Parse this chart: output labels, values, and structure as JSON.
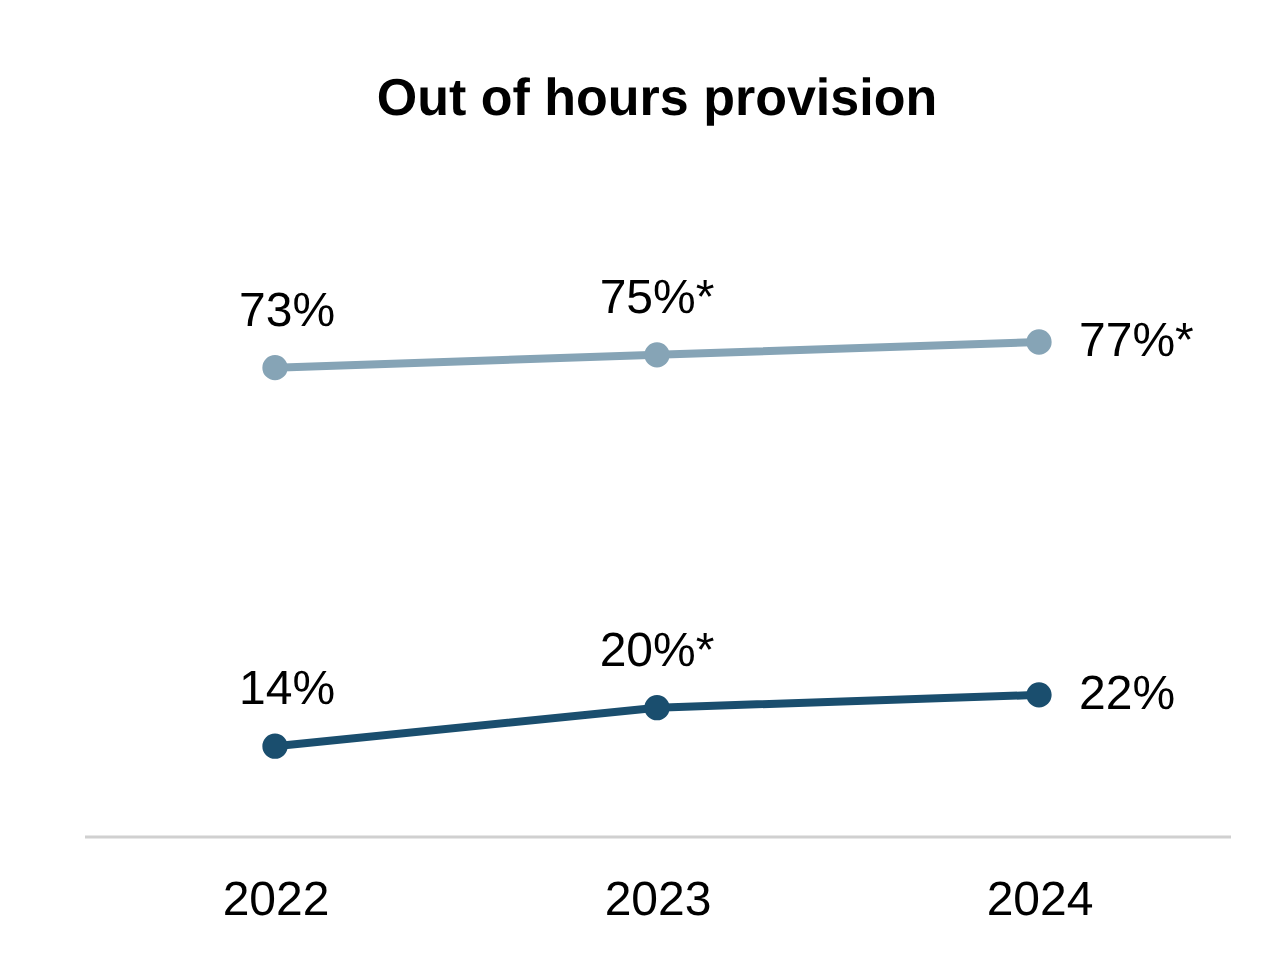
{
  "chart_data": {
    "type": "line",
    "title": "Out of hours provision",
    "categories": [
      "2022",
      "2023",
      "2024"
    ],
    "series": [
      {
        "color": "#86a4b6",
        "values": [
          73,
          75,
          77
        ],
        "value_labels": [
          "73%",
          "75%*",
          "77%*"
        ]
      },
      {
        "color": "#1a4e6e",
        "values": [
          14,
          20,
          22
        ],
        "value_labels": [
          "14%",
          "20%*",
          "22%"
        ]
      }
    ],
    "tick_labels": "x",
    "marker": "circle",
    "line_style": "solid",
    "grid": false
  }
}
